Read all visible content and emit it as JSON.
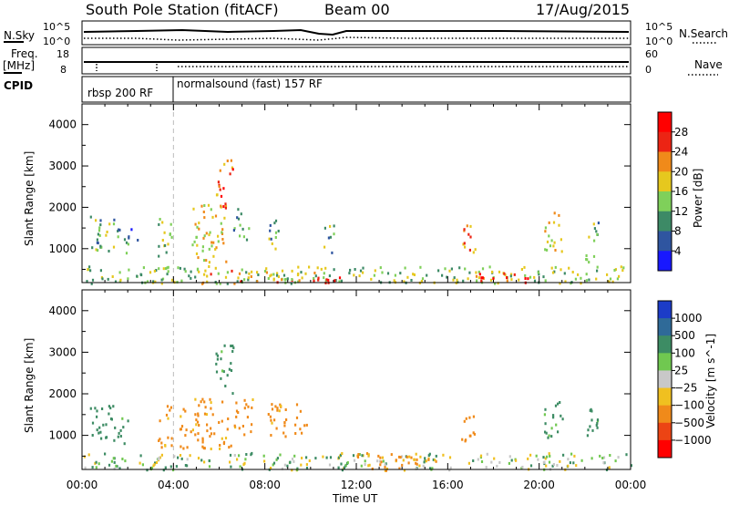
{
  "header": {
    "station": "South Pole Station (fitACF)",
    "beam": "Beam 00",
    "date": "17/Aug/2015"
  },
  "top_panels": {
    "nsky_label": "N.Sky",
    "nsky_top_tick": "10^5",
    "nsky_bottom_tick": "10^0",
    "nsearch_label": "N.Search",
    "nsearch_top_tick": "10^5",
    "nsearch_bottom_tick": "10^0",
    "freq_label_line1": "Freq.",
    "freq_label_line2": "[MHz]",
    "freq_top_tick": "18",
    "freq_bottom_tick": "8",
    "nave_label": "Nave",
    "nave_top_tick": "60",
    "nave_bottom_tick": "0",
    "cpid_label": "CPID",
    "cpid_segments": [
      {
        "label": "rbsp 200 RF",
        "start_hour": 0.0,
        "end_hour": 4.0
      },
      {
        "label": "normalsound (fast) 157 RF",
        "start_hour": 4.0,
        "end_hour": 24.0
      }
    ]
  },
  "chart_data": [
    {
      "type": "heatmap",
      "name": "power",
      "ylabel": "Slant Range [km]",
      "xlabel": "Time UT",
      "xlim_hours": [
        0,
        24
      ],
      "ylim": [
        180,
        4500
      ],
      "y_ticks": [
        1000,
        2000,
        3000,
        4000
      ],
      "colorbar_label": "Power [dB]",
      "colorbar_ticks": [
        "4",
        "8",
        "12",
        "16",
        "20",
        "24",
        "28"
      ],
      "colorbar_colors": [
        "#1818ff",
        "#2f55a0",
        "#3d8a66",
        "#7fd05a",
        "#e6c81e",
        "#f08a1a",
        "#ec2414",
        "#ff0000"
      ],
      "echo_blobs": [
        {
          "t0": 0.3,
          "t1": 1.5,
          "r0": 900,
          "r1": 1800,
          "value": 12
        },
        {
          "t0": 1.5,
          "t1": 2.0,
          "r0": 800,
          "r1": 1500,
          "value": 10
        },
        {
          "t0": 2.0,
          "t1": 2.5,
          "r0": 1200,
          "r1": 1600,
          "value": 8
        },
        {
          "t0": 3.3,
          "t1": 3.9,
          "r0": 700,
          "r1": 1800,
          "value": 14
        },
        {
          "t0": 4.8,
          "t1": 6.3,
          "r0": 700,
          "r1": 2100,
          "value": 18
        },
        {
          "t0": 5.8,
          "t1": 6.6,
          "r0": 2000,
          "r1": 3200,
          "value": 24
        },
        {
          "t0": 6.6,
          "t1": 7.3,
          "r0": 1200,
          "r1": 2000,
          "value": 10
        },
        {
          "t0": 8.0,
          "t1": 8.6,
          "r0": 1000,
          "r1": 1800,
          "value": 12
        },
        {
          "t0": 10.5,
          "t1": 11.0,
          "r0": 900,
          "r1": 1600,
          "value": 12
        },
        {
          "t0": 16.5,
          "t1": 17.2,
          "r0": 800,
          "r1": 1600,
          "value": 22
        },
        {
          "t0": 20.2,
          "t1": 21.0,
          "r0": 900,
          "r1": 1900,
          "value": 18
        },
        {
          "t0": 22.0,
          "t1": 22.6,
          "r0": 700,
          "r1": 1700,
          "value": 12
        },
        {
          "t0": 0.0,
          "t1": 24.0,
          "r0": 180,
          "r1": 600,
          "value": 14
        },
        {
          "t0": 10.0,
          "t1": 11.4,
          "r0": 180,
          "r1": 500,
          "value": 28
        },
        {
          "t0": 17.2,
          "t1": 19.5,
          "r0": 180,
          "r1": 450,
          "value": 28
        },
        {
          "t0": 5.0,
          "t1": 9.5,
          "r0": 180,
          "r1": 500,
          "value": 20
        }
      ]
    },
    {
      "type": "heatmap",
      "name": "velocity",
      "ylabel": "Slant Range [km]",
      "xlabel": "Time UT",
      "xlim_hours": [
        0,
        24
      ],
      "ylim": [
        180,
        4500
      ],
      "y_ticks": [
        1000,
        2000,
        3000,
        4000
      ],
      "x_tick_labels": [
        "00:00",
        "04:00",
        "08:00",
        "12:00",
        "16:00",
        "20:00",
        "00:00"
      ],
      "colorbar_label": "Velocity [m s^-1]",
      "colorbar_ticks": [
        "1000",
        "500",
        "100",
        "25",
        "-25",
        "-100",
        "-500",
        "-1000"
      ],
      "colorbar_colors": [
        "#1c3cc8",
        "#2f6a98",
        "#3d8c64",
        "#70c850",
        "#c8c8c8",
        "#f0c020",
        "#f08a1a",
        "#ec4414",
        "#ff0000"
      ],
      "echo_blobs": [
        {
          "t0": 0.3,
          "t1": 1.5,
          "r0": 900,
          "r1": 1800,
          "value": 300
        },
        {
          "t0": 1.5,
          "t1": 2.0,
          "r0": 800,
          "r1": 1500,
          "value": 200
        },
        {
          "t0": 3.3,
          "t1": 3.9,
          "r0": 700,
          "r1": 1800,
          "value": -200
        },
        {
          "t0": 4.2,
          "t1": 6.5,
          "r0": 700,
          "r1": 1900,
          "value": -200
        },
        {
          "t0": 6.6,
          "t1": 7.5,
          "r0": 1000,
          "r1": 1900,
          "value": -200
        },
        {
          "t0": 8.0,
          "t1": 9.8,
          "r0": 1000,
          "r1": 1800,
          "value": -200
        },
        {
          "t0": 5.8,
          "t1": 6.6,
          "r0": 2000,
          "r1": 3200,
          "value": 200
        },
        {
          "t0": 16.5,
          "t1": 17.2,
          "r0": 800,
          "r1": 1500,
          "value": -200
        },
        {
          "t0": 20.2,
          "t1": 21.0,
          "r0": 900,
          "r1": 1900,
          "value": 200
        },
        {
          "t0": 22.0,
          "t1": 22.6,
          "r0": 700,
          "r1": 1700,
          "value": 200
        },
        {
          "t0": 0.0,
          "t1": 24.0,
          "r0": 180,
          "r1": 600,
          "value": 50
        },
        {
          "t0": 12.0,
          "t1": 15.5,
          "r0": 180,
          "r1": 600,
          "value": -200
        }
      ]
    }
  ]
}
